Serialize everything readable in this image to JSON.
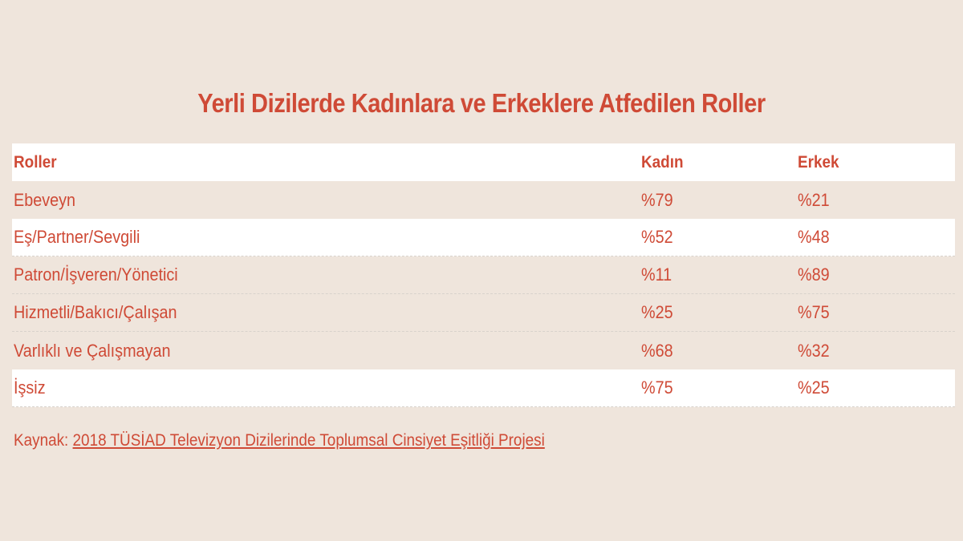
{
  "title": "Yerli Dizilerde Kadınlara ve Erkeklere Atfedilen Roller",
  "table": {
    "headers": {
      "role": "Roller",
      "kadin": "Kadın",
      "erkek": "Erkek"
    },
    "rows": [
      {
        "role": "Ebeveyn",
        "kadin": "%79",
        "erkek": "%21"
      },
      {
        "role": "Eş/Partner/Sevgili",
        "kadin": "%52",
        "erkek": "%48"
      },
      {
        "role": "Patron/İşveren/Yönetici",
        "kadin": "%11",
        "erkek": "%89"
      },
      {
        "role": "Hizmetli/Bakıcı/Çalışan",
        "kadin": "%25",
        "erkek": "%75"
      },
      {
        "role": "Varlıklı ve Çalışmayan",
        "kadin": "%68",
        "erkek": "%32"
      },
      {
        "role": "İşsiz",
        "kadin": "%75",
        "erkek": "%25"
      }
    ]
  },
  "source": {
    "prefix": "Kaynak: ",
    "link_text": "2018 TÜSİAD Televizyon Dizilerinde Toplumsal Cinsiyet Eşitliği Projesi"
  },
  "colors": {
    "accent": "#cf4a36",
    "background": "#efe5dc",
    "row_white": "#ffffff"
  }
}
